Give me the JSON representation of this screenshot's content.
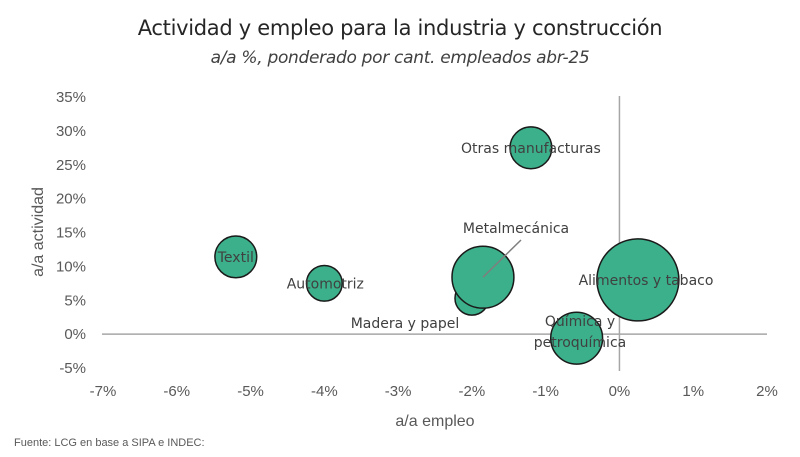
{
  "chart_data": {
    "type": "scatter",
    "subtype": "bubble",
    "title": "Actividad y empleo para la industria y construcción",
    "subtitle": "a/a %, ponderado por cant. empleados abr-25",
    "xlabel": "a/a empleo",
    "ylabel": "a/a actividad",
    "xlim": [
      -7,
      2
    ],
    "ylim": [
      -5,
      35
    ],
    "x_ticks": [
      -7,
      -6,
      -5,
      -4,
      -3,
      -2,
      -1,
      0,
      1,
      2
    ],
    "y_ticks": [
      -5,
      0,
      5,
      10,
      15,
      20,
      25,
      30,
      35
    ],
    "x_tick_labels": [
      "-7%",
      "-6%",
      "-5%",
      "-4%",
      "-3%",
      "-2%",
      "-1%",
      "0%",
      "1%",
      "2%"
    ],
    "y_tick_labels": [
      "-5%",
      "0%",
      "5%",
      "10%",
      "15%",
      "20%",
      "25%",
      "30%",
      "35%"
    ],
    "grid": false,
    "units": "%",
    "size_note": "bubble area proportional to relative employment weight (Alimentos y tabaco = 100)",
    "series": [
      {
        "name": "Textil",
        "x": -5.2,
        "y": 11.4,
        "size": 26
      },
      {
        "name": "Automotriz",
        "x": -4.0,
        "y": 7.5,
        "size": 19
      },
      {
        "name": "Otras manufacturas",
        "x": -1.2,
        "y": 27.5,
        "size": 26
      },
      {
        "name": "Madera y papel",
        "x": -2.0,
        "y": 5.3,
        "size": 17
      },
      {
        "name": "Metalmecánica",
        "x": -1.85,
        "y": 8.4,
        "size": 57
      },
      {
        "name": "Alimentos y tabaco",
        "x": 0.25,
        "y": 8.0,
        "size": 100
      },
      {
        "name": "Química y petroquímica",
        "x": -0.58,
        "y": -0.6,
        "size": 40
      }
    ],
    "colors": {
      "bubble_fill": "#3bb08a",
      "bubble_stroke": "#1a1a1a",
      "axis": "#a6a6a6",
      "leader": "#7f7f7f"
    }
  },
  "footer": {
    "source": "Fuente: LCG en base a SIPA e INDEC:"
  }
}
